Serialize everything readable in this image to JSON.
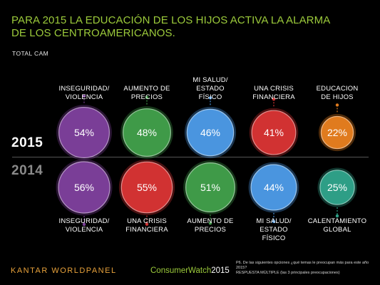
{
  "header": {
    "title": "PARA 2015 LA EDUCACIÓN DE LOS HIJOS ACTIVA LA ALARMA DE LOS CENTROAMERICANOS.",
    "subtitle": "TOTAL CAM"
  },
  "chart_data": {
    "type": "bubble",
    "years": [
      "2015",
      "2014"
    ],
    "series": [
      {
        "year": "2015",
        "items": [
          {
            "label": "INSEGURIDAD/ VIOLENCIA",
            "value": 54,
            "display": "54%",
            "color": "#7a3e97"
          },
          {
            "label": "AUMENTO DE PRECIOS",
            "value": 48,
            "display": "48%",
            "color": "#3f9a48"
          },
          {
            "label": "MI SALUD/ ESTADO FÍSICO",
            "value": 46,
            "display": "46%",
            "color": "#4a95df"
          },
          {
            "label": "UNA CRISIS FINANCIERA",
            "value": 41,
            "display": "41%",
            "color": "#d13232"
          },
          {
            "label": "EDUCACION DE HIJOS",
            "value": 22,
            "display": "22%",
            "color": "#e07b1e"
          }
        ]
      },
      {
        "year": "2014",
        "items": [
          {
            "label": "INSEGURIDAD/ VIOLENCIA",
            "value": 56,
            "display": "56%",
            "color": "#7a3e97"
          },
          {
            "label": "UNA CRISIS FINANCIERA",
            "value": 55,
            "display": "55%",
            "color": "#d13232"
          },
          {
            "label": "AUMENTO DE PRECIOS",
            "value": 51,
            "display": "51%",
            "color": "#3f9a48"
          },
          {
            "label": "MI SALUD/ ESTADO FÍSICO",
            "value": 44,
            "display": "44%",
            "color": "#4a95df"
          },
          {
            "label": "CALENTAMIENTO GLOBAL",
            "value": 25,
            "display": "25%",
            "color": "#2e9e86"
          }
        ]
      }
    ]
  },
  "footer": {
    "logo": "KANTAR WORLDPANEL",
    "cw_name": "ConsumerWatch",
    "cw_year": "2015",
    "note_line1": "P6. De las siguientes opciones ¿qué temas le preocupan más para este año 2015?",
    "note_line2": "RESPUESTA MÚLTIPLE (las 3 principales preocupaciones)"
  }
}
